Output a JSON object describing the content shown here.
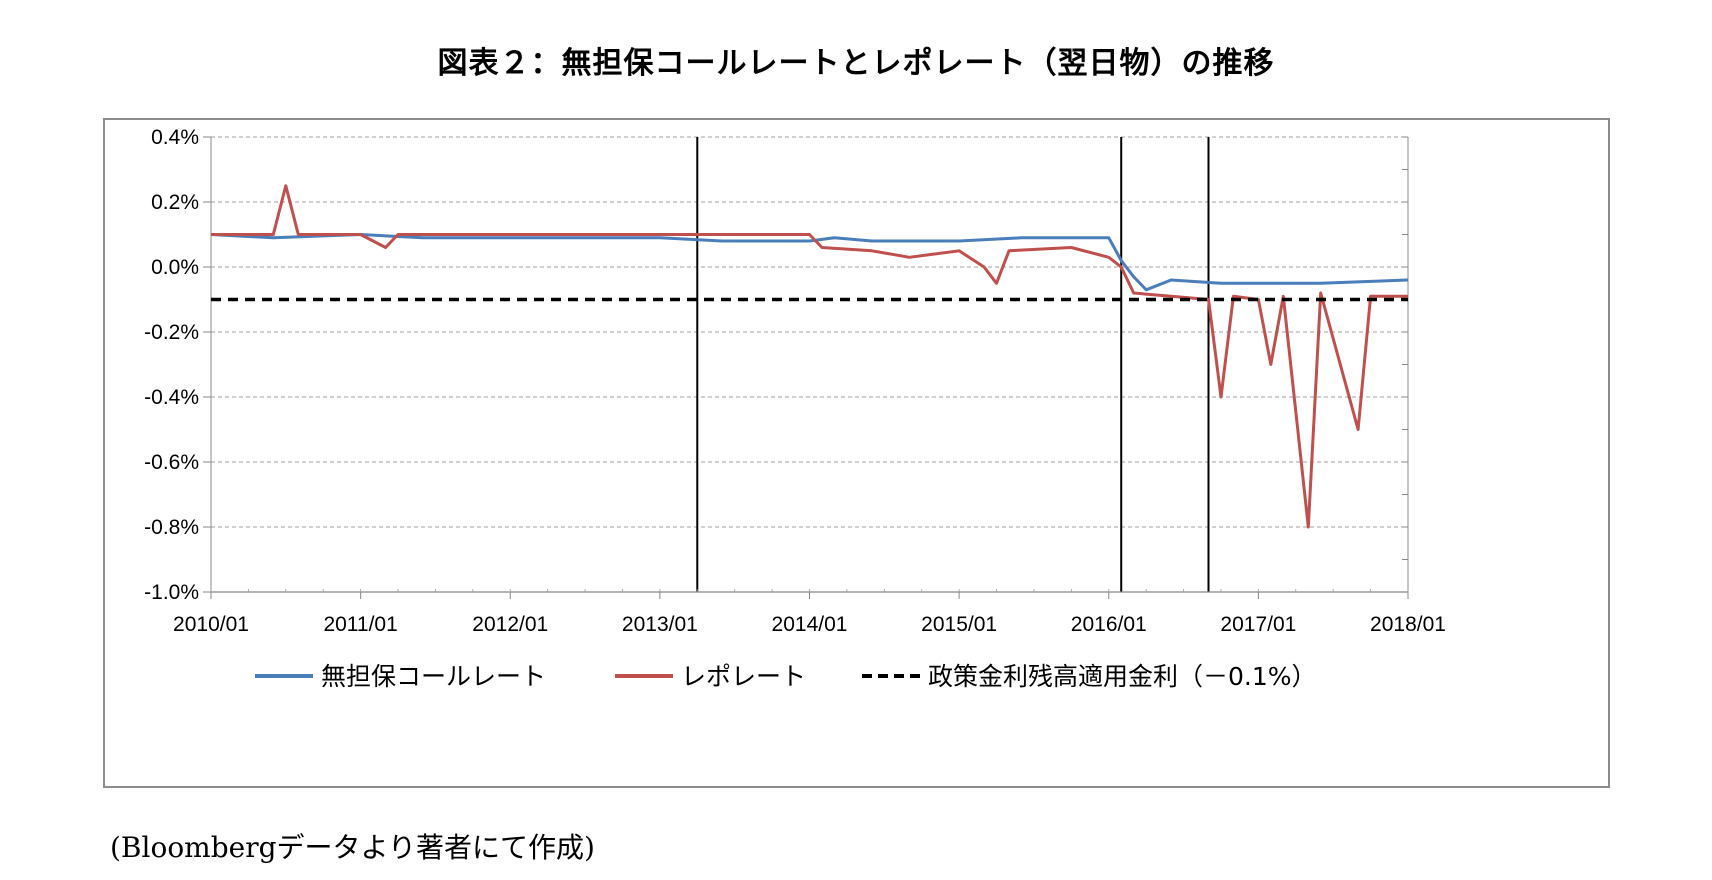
{
  "title": "図表２：無担保コールレートとレポレート（翌日物）の推移",
  "source": "(Bloombergデータより著者にて作成)",
  "colors": {
    "call": "#4a7ebb",
    "repo": "#c0504d",
    "policy": "#000000",
    "grid": "#a0a0a0"
  },
  "chart_data": {
    "type": "line",
    "title": "図表２：無担保コールレートとレポレート（翌日物）の推移",
    "xlabel": "",
    "ylabel": "",
    "x_ticks": [
      "2010/01",
      "2011/01",
      "2012/01",
      "2013/01",
      "2014/01",
      "2015/01",
      "2016/01",
      "2017/01",
      "2018/01"
    ],
    "y_ticks": [
      "0.4%",
      "0.2%",
      "0.0%",
      "-0.2%",
      "-0.4%",
      "-0.6%",
      "-0.8%",
      "-1.0%"
    ],
    "ylim": [
      -1.0,
      0.4
    ],
    "xlim": [
      "2010/01",
      "2018/01"
    ],
    "grid": true,
    "legend_position": "bottom",
    "vertical_lines": [
      "2013/04",
      "2016/02",
      "2016/09"
    ],
    "series": [
      {
        "name": "無担保コールレート",
        "style": "solid",
        "color": "#4a7ebb",
        "points": [
          [
            "2010/01",
            0.1
          ],
          [
            "2010/06",
            0.09
          ],
          [
            "2011/01",
            0.1
          ],
          [
            "2011/06",
            0.09
          ],
          [
            "2012/01",
            0.09
          ],
          [
            "2012/06",
            0.09
          ],
          [
            "2013/01",
            0.09
          ],
          [
            "2013/06",
            0.08
          ],
          [
            "2014/01",
            0.08
          ],
          [
            "2014/03",
            0.09
          ],
          [
            "2014/06",
            0.08
          ],
          [
            "2015/01",
            0.08
          ],
          [
            "2015/06",
            0.09
          ],
          [
            "2016/01",
            0.09
          ],
          [
            "2016/02",
            0.02
          ],
          [
            "2016/03",
            -0.03
          ],
          [
            "2016/04",
            -0.07
          ],
          [
            "2016/06",
            -0.04
          ],
          [
            "2016/10",
            -0.05
          ],
          [
            "2017/01",
            -0.05
          ],
          [
            "2017/06",
            -0.05
          ],
          [
            "2018/01",
            -0.04
          ]
        ]
      },
      {
        "name": "レポレート",
        "style": "solid",
        "color": "#c0504d",
        "points": [
          [
            "2010/01",
            0.1
          ],
          [
            "2010/06",
            0.1
          ],
          [
            "2010/07",
            0.25
          ],
          [
            "2010/08",
            0.1
          ],
          [
            "2011/01",
            0.1
          ],
          [
            "2011/03",
            0.06
          ],
          [
            "2011/04",
            0.1
          ],
          [
            "2012/01",
            0.1
          ],
          [
            "2013/01",
            0.1
          ],
          [
            "2013/06",
            0.1
          ],
          [
            "2014/01",
            0.1
          ],
          [
            "2014/02",
            0.06
          ],
          [
            "2014/06",
            0.05
          ],
          [
            "2014/09",
            0.03
          ],
          [
            "2015/01",
            0.05
          ],
          [
            "2015/03",
            0.0
          ],
          [
            "2015/04",
            -0.05
          ],
          [
            "2015/05",
            0.05
          ],
          [
            "2015/10",
            0.06
          ],
          [
            "2016/01",
            0.03
          ],
          [
            "2016/02",
            0.0
          ],
          [
            "2016/03",
            -0.08
          ],
          [
            "2016/06",
            -0.09
          ],
          [
            "2016/09",
            -0.1
          ],
          [
            "2016/10",
            -0.4
          ],
          [
            "2016/11",
            -0.09
          ],
          [
            "2017/01",
            -0.1
          ],
          [
            "2017/02",
            -0.3
          ],
          [
            "2017/03",
            -0.09
          ],
          [
            "2017/05",
            -0.8
          ],
          [
            "2017/06",
            -0.08
          ],
          [
            "2017/09",
            -0.5
          ],
          [
            "2017/10",
            -0.09
          ],
          [
            "2018/01",
            -0.09
          ]
        ]
      },
      {
        "name": "政策金利残高適用金利（－0.1%）",
        "style": "dashed",
        "color": "#000000",
        "points": [
          [
            "2010/01",
            -0.1
          ],
          [
            "2018/01",
            -0.1
          ]
        ]
      }
    ]
  }
}
